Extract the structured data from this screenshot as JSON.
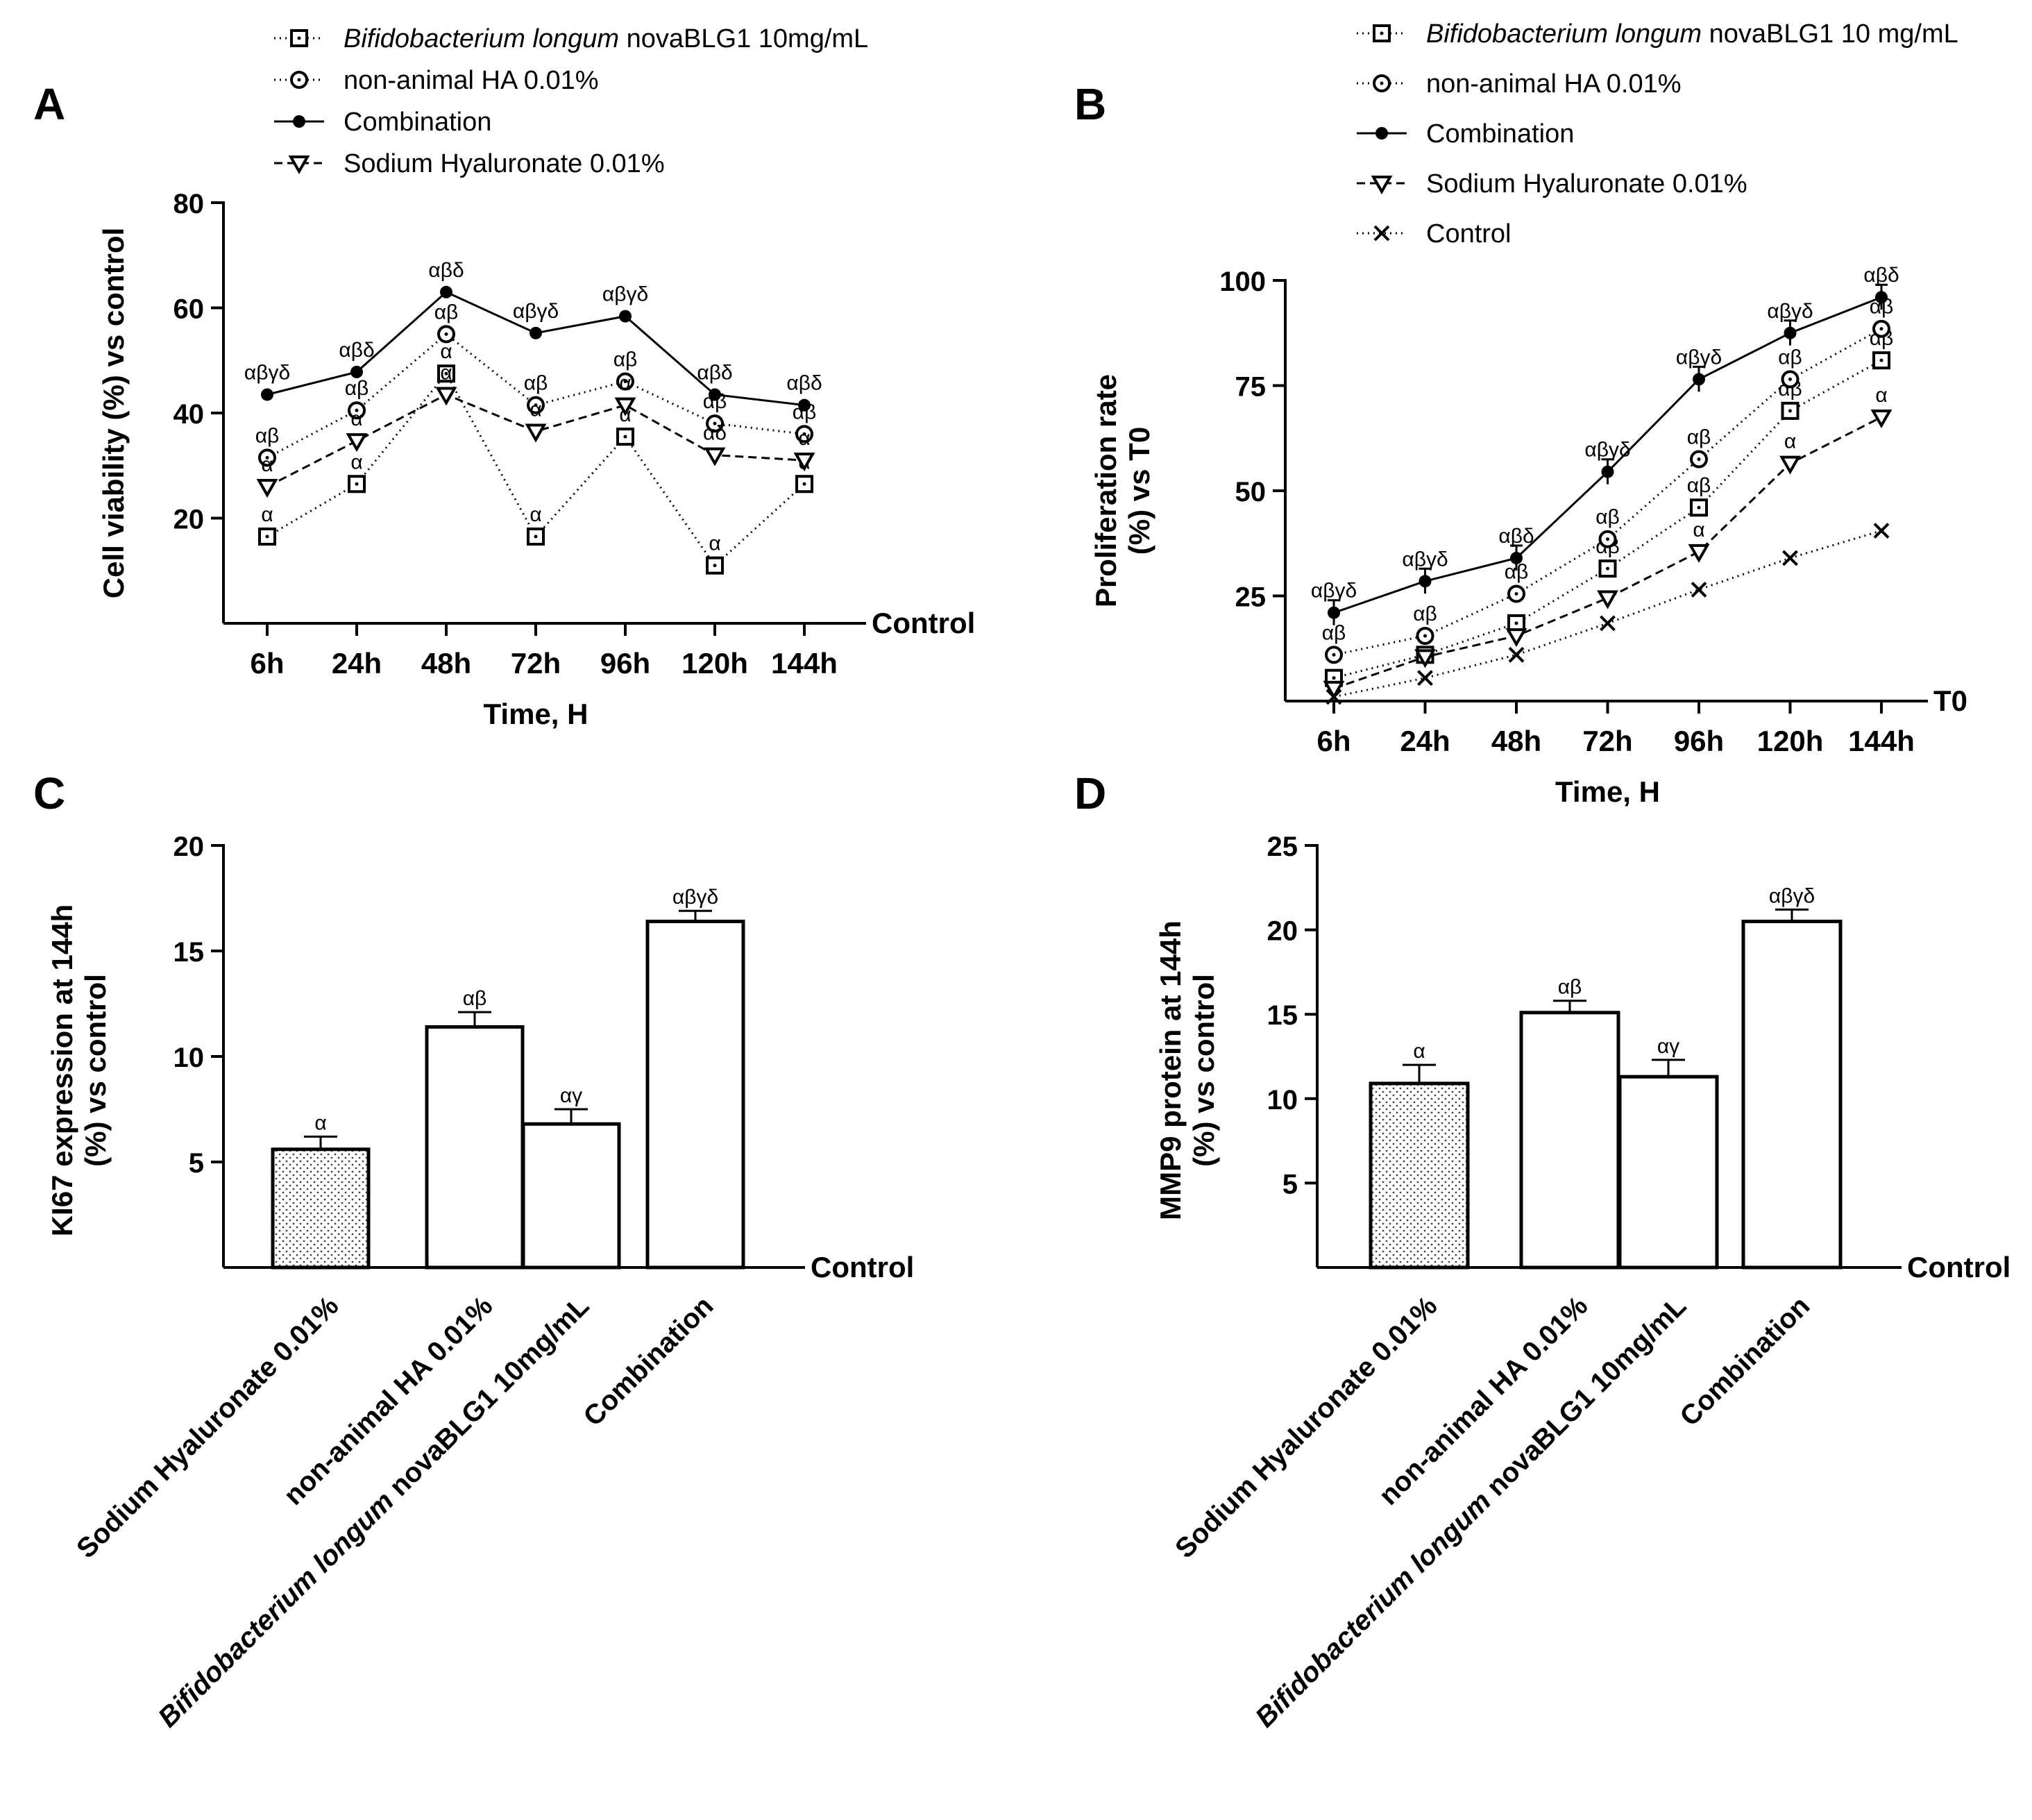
{
  "chart_data": [
    {
      "panel": "A",
      "type": "line",
      "xlabel": "Time, H",
      "ylabel": "Cell viability (%) vs control",
      "baseline_label": "Control",
      "categories": [
        "6h",
        "24h",
        "48h",
        "72h",
        "96h",
        "120h",
        "144h"
      ],
      "ylim": [
        0,
        80
      ],
      "yticks": [
        "20",
        "40",
        "60",
        "80"
      ],
      "legend_position": "top",
      "series": [
        {
          "name_italic": "Bifidobacterium longum",
          "name": " novaBLG1 10mg/mL",
          "marker": "square",
          "line": "dotted",
          "values": [
            16.5,
            26.5,
            47.5,
            16.5,
            35.5,
            11,
            26.5
          ],
          "labels": [
            "α",
            "α",
            "α",
            "α",
            "α",
            "α",
            "α"
          ]
        },
        {
          "name": "non-animal HA 0.01%",
          "marker": "circle",
          "line": "dotted",
          "values": [
            31.5,
            40.5,
            55,
            41.5,
            46,
            38,
            36
          ],
          "labels": [
            "αβ",
            "αβ",
            "αβ",
            "αβ",
            "αβ",
            "αβ",
            "αβ"
          ]
        },
        {
          "name": "Combination",
          "marker": "dot",
          "line": "solid",
          "values": [
            43.5,
            47.8,
            63,
            55.2,
            58.4,
            43.5,
            41.5
          ],
          "labels": [
            "αβγδ",
            "αβδ",
            "αβδ",
            "αβγδ",
            "αβγδ",
            "αβδ",
            "αβδ"
          ]
        },
        {
          "name": "Sodium Hyaluronate 0.01%",
          "marker": "triangle",
          "line": "dashed",
          "values": [
            26,
            34.7,
            43.5,
            36.5,
            41.5,
            32,
            31
          ],
          "labels": [
            "α",
            "α",
            "α",
            "α",
            "α",
            "αδ",
            "α"
          ]
        }
      ]
    },
    {
      "panel": "B",
      "type": "line",
      "xlabel": "Time, H",
      "ylabel_lines": [
        "Proliferation rate",
        "(%) vs T0"
      ],
      "baseline_label": "T0",
      "categories": [
        "6h",
        "24h",
        "48h",
        "72h",
        "96h",
        "120h",
        "144h"
      ],
      "ylim": [
        0,
        100
      ],
      "yticks": [
        "25",
        "50",
        "75",
        "100"
      ],
      "legend_position": "top",
      "series": [
        {
          "name_italic": "Bifidobacterium longum",
          "name": " novaBLG1 10 mg/mL",
          "marker": "square",
          "line": "dotted",
          "values": [
            5.5,
            11,
            18.5,
            31.5,
            46,
            69,
            81
          ],
          "labels": [
            "",
            "",
            "",
            "αβ",
            "αβ",
            "αβ",
            "αβ"
          ]
        },
        {
          "name": "non-animal HA 0.01%",
          "marker": "circle",
          "line": "dotted",
          "values": [
            11,
            15.5,
            25.5,
            38.5,
            57.5,
            76.5,
            88.5
          ],
          "labels": [
            "αβ",
            "αβ",
            "αβ",
            "αβ",
            "αβ",
            "αβ",
            "αβ"
          ]
        },
        {
          "name": "Combination",
          "marker": "dot",
          "line": "solid",
          "errorbars": true,
          "values": [
            21,
            28.5,
            34,
            54.5,
            76.5,
            87.5,
            96
          ],
          "labels": [
            "αβγδ",
            "αβγδ",
            "αβδ",
            "αβγδ",
            "αβγδ",
            "αβγδ",
            "αβδ"
          ]
        },
        {
          "name": "Sodium Hyaluronate 0.01%",
          "marker": "triangle",
          "line": "dashed",
          "values": [
            3,
            10.5,
            15.5,
            24.5,
            35.5,
            56.5,
            67.5
          ],
          "labels": [
            "",
            "",
            "",
            "",
            "α",
            "α",
            "α"
          ]
        },
        {
          "name": "Control",
          "marker": "x",
          "line": "dotted",
          "values": [
            1,
            5.5,
            11,
            18.5,
            26.5,
            34,
            40.5
          ],
          "labels": [
            "",
            "",
            "",
            "",
            "",
            "",
            ""
          ]
        }
      ]
    },
    {
      "panel": "C",
      "type": "bar",
      "ylabel_lines": [
        "KI67 expression at 144h",
        "(%) vs control"
      ],
      "baseline_label": "Control",
      "ylim": [
        0,
        20
      ],
      "yticks": [
        "5",
        "10",
        "15",
        "20"
      ],
      "categories": [
        {
          "text": "Sodium Hyaluronate 0.01%"
        },
        {
          "text": "non-animal HA 0.01%"
        },
        {
          "italic": "Bifidobacterium longum",
          "text": " novaBLG1 10mg/mL"
        },
        {
          "text": "Combination"
        }
      ],
      "values": [
        5.6,
        11.4,
        6.8,
        16.4
      ],
      "errors": [
        0.6,
        0.7,
        0.7,
        0.5
      ],
      "labels": [
        "α",
        "αβ",
        "αγ",
        "αβγδ"
      ],
      "patterns": [
        "dotted",
        "none",
        "none",
        "none"
      ]
    },
    {
      "panel": "D",
      "type": "bar",
      "ylabel_lines": [
        "MMP9 protein at 144h",
        "(%) vs control"
      ],
      "baseline_label": "Control",
      "ylim": [
        0,
        25
      ],
      "yticks": [
        "5",
        "10",
        "15",
        "20",
        "25"
      ],
      "categories": [
        {
          "text": "Sodium Hyaluronate 0.01%"
        },
        {
          "text": "non-animal HA 0.01%"
        },
        {
          "italic": "Bifidobacterium longum",
          "text": " novaBLG1 10mg/mL"
        },
        {
          "text": "Combination"
        }
      ],
      "values": [
        10.9,
        15.1,
        11.3,
        20.5
      ],
      "errors": [
        1.1,
        0.7,
        1.0,
        0.7
      ],
      "labels": [
        "α",
        "αβ",
        "αγ",
        "αβγδ"
      ],
      "patterns": [
        "dotted",
        "none",
        "none",
        "none"
      ]
    }
  ]
}
